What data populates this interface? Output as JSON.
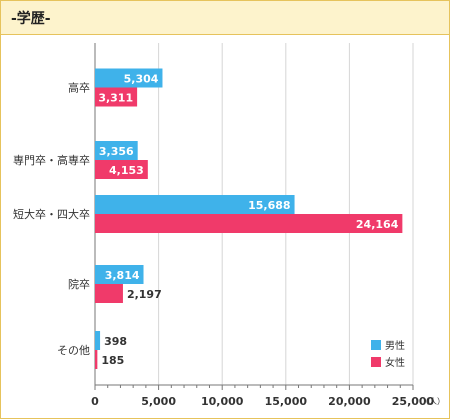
{
  "section": {
    "title": "-学歴-"
  },
  "colors": {
    "male": "#3fb2ea",
    "female": "#f03a6a",
    "grid": "#d6d6d6",
    "axis": "#777777",
    "text": "#333333",
    "border": "#e6c35c",
    "header_bg": "#fdf3cc"
  },
  "chart_data": {
    "type": "bar",
    "orientation": "horizontal",
    "categories": [
      "高卒",
      "専門卒・高専卒",
      "短大卒・四大卒",
      "院卒",
      "その他"
    ],
    "series": [
      {
        "name": "男性",
        "values": [
          5304,
          3356,
          15688,
          3814,
          398
        ],
        "labels": [
          "5,304",
          "3,356",
          "15,688",
          "3,814",
          "398"
        ]
      },
      {
        "name": "女性",
        "values": [
          3311,
          4153,
          24164,
          2197,
          185
        ],
        "labels": [
          "3,311",
          "4,153",
          "24,164",
          "2,197",
          "185"
        ]
      }
    ],
    "xlim": [
      0,
      25000
    ],
    "x_ticks": [
      0,
      5000,
      10000,
      15000,
      20000,
      25000
    ],
    "x_tick_labels": [
      "0",
      "5,000",
      "10,000",
      "15,000",
      "20,000",
      "25,000"
    ],
    "x_unit": "（人）",
    "grid": true,
    "legend_position": "bottom-right"
  }
}
